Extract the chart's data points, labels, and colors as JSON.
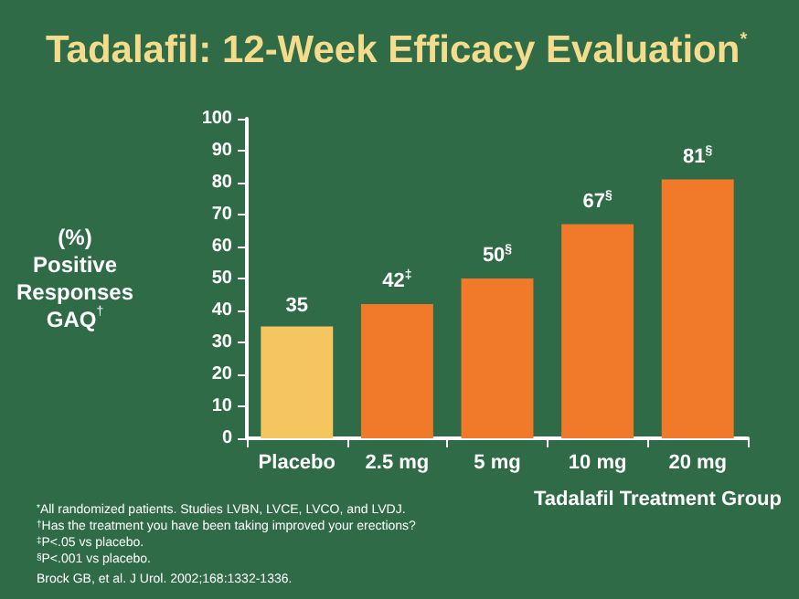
{
  "chart_data": {
    "type": "bar",
    "title": "Tadalafil: 12-Week Efficacy Evaluation$^{*}$",
    "ylabel": "(%)\nPositive\nResponses\nGAQ$^{†}$",
    "xlabel": "Tadalafil Treatment Group",
    "categories": [
      "Placebo",
      "2.5 mg",
      "5 mg",
      "10 mg",
      "20 mg"
    ],
    "values": [
      35,
      42,
      50,
      67,
      81
    ],
    "colors": [
      "#f5c560",
      "#f07a2a",
      "#f07a2a",
      "#f07a2a",
      "#f07a2a"
    ],
    "value_labels": [
      "35",
      "42$^{‡}$",
      "50$^{§}$",
      "67$^{§}$",
      "81$^{§}$"
    ],
    "ylim": [
      0,
      100
    ],
    "yticks": [
      0,
      10,
      20,
      30,
      40,
      50,
      60,
      70,
      80,
      90,
      100
    ],
    "grid": false,
    "annotations": [
      "$^{*}$All randomized patients. Studies LVBN, LVCE, LVCO, and LVDJ.",
      "$^{†}$Has the treatment you have been taking improved your erections?",
      "$^{‡}$P<.05 vs placebo.",
      "$^{§}$P<.001 vs placebo.",
      "Brock GB, et al. J Urol. 2002;168:1332-1336."
    ]
  }
}
